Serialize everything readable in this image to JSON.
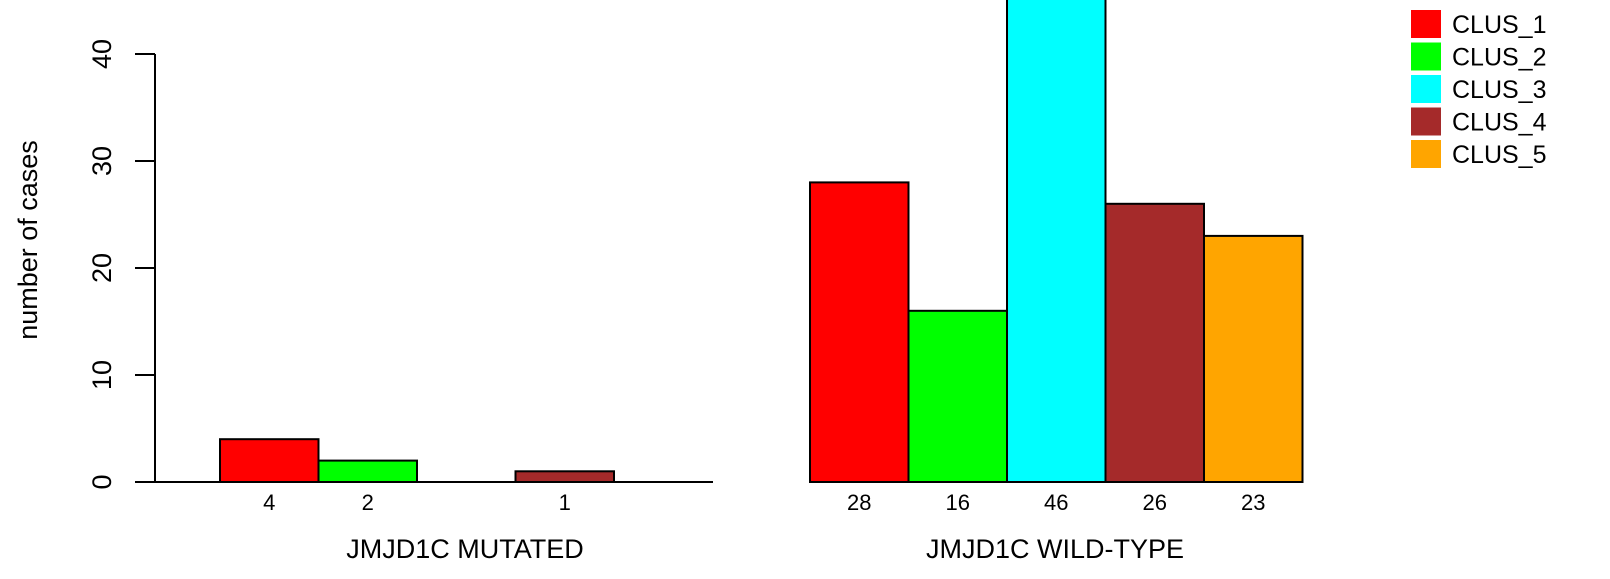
{
  "chart_data": {
    "type": "bar",
    "ylabel": "number of cases",
    "ylim": [
      0,
      46
    ],
    "yticks": [
      0,
      10,
      20,
      30,
      40
    ],
    "grid": false,
    "legend_position": "top-right",
    "legend": [
      {
        "label": "CLUS_1",
        "color": "#ff0000"
      },
      {
        "label": "CLUS_2",
        "color": "#00ff00"
      },
      {
        "label": "CLUS_3",
        "color": "#00ffff"
      },
      {
        "label": "CLUS_4",
        "color": "#a52a2a"
      },
      {
        "label": "CLUS_5",
        "color": "#ffa500"
      }
    ],
    "groups": [
      {
        "xlabel": "JMJD1C MUTATED",
        "values": [
          4,
          2,
          0,
          1,
          0
        ],
        "value_labels": [
          "4",
          "2",
          "",
          "1",
          ""
        ]
      },
      {
        "xlabel": "JMJD1C WILD-TYPE",
        "values": [
          28,
          16,
          46,
          26,
          23
        ],
        "value_labels": [
          "28",
          "16",
          "46",
          "26",
          "23"
        ]
      }
    ]
  }
}
